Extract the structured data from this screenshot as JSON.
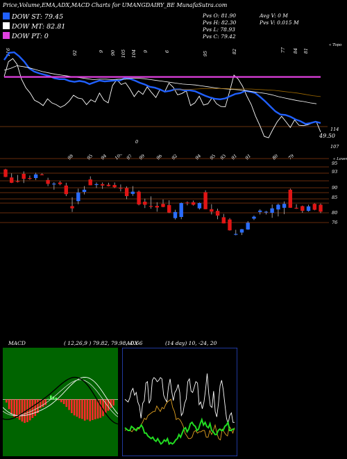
{
  "header": {
    "title": "Price,Volume,EMA,ADX,MACD Charts for UMANGDAIRY_BE MunafaSutra.com"
  },
  "legend": [
    {
      "label": "DOW ST: 79.45",
      "color": "#2060ff"
    },
    {
      "label": "DOW MT: 82.81",
      "color": "#ffffff"
    },
    {
      "label": "DOW PT: 0",
      "color": "#e040e0"
    }
  ],
  "info": {
    "prev_open": "Pvs  O: 81.90",
    "prev_high": "Pvs  H: 82.30",
    "prev_low": "Pvs  L: 78.93",
    "prev_close": "Pvs  C: 79.42",
    "avg_volume": "Avg V: 0  M",
    "prev_volume": "Pvs  V: 0.015 M"
  },
  "chart_data": [
    {
      "type": "line",
      "name": "price-ema-panel",
      "top_labels": [
        "116",
        "92",
        "9",
        "90",
        "105",
        "104",
        "9",
        "6",
        "95",
        "82",
        "77",
        "84",
        "81"
      ],
      "top_marks": [
        "6",
        "6"
      ],
      "corner_label": "« Topo",
      "right_labels": [
        "114",
        "107"
      ],
      "price_value_label": "49.50",
      "zero_mark": "0",
      "series": [
        {
          "color": "#ffffff",
          "values": [
            114.5,
            117.8,
            118.5,
            117.2,
            113.9,
            112.0,
            110.8,
            109.2,
            108.7,
            108.0,
            109.5,
            108.6,
            108.2,
            107.6,
            108.1,
            109.0,
            110.3,
            109.7,
            109.5,
            108.2,
            109.3,
            108.8,
            110.8,
            109.2,
            108.6,
            112.5,
            113.8,
            112.7,
            113.1,
            111.7,
            110.0,
            111.3,
            110.5,
            112.2,
            110.9,
            109.8,
            111.7,
            111.0,
            113.0,
            112.1,
            110.4,
            110.7,
            111.3,
            108.0,
            108.6,
            110.1,
            108.1,
            108.4,
            109.8,
            108.4,
            107.8,
            107.7,
            111.1,
            114.8,
            113.9,
            112.3,
            110.1,
            108.2,
            105.6,
            103.5,
            101.1,
            100.8,
            102.7,
            104.4,
            105.6,
            104.4,
            103.1,
            104.8,
            103.6,
            103.5,
            103.7,
            104.1,
            104.4,
            102.1
          ]
        },
        {
          "color": "#2060ff",
          "values": [
            118.2,
            119.8,
            119.9,
            119.0,
            117.8,
            116.3,
            115.6,
            115.2,
            114.9,
            114.6,
            114.1,
            113.9,
            113.9,
            113.5,
            113.3,
            113.5,
            113.3,
            112.8,
            113.2,
            113.6,
            113.4,
            113.5,
            113.6,
            113.6,
            114.1,
            114.0,
            113.6,
            113.1,
            112.7,
            112.2,
            112.0,
            111.6,
            111.1,
            111.3,
            111.6,
            111.6,
            111.4,
            111.4,
            111.2,
            110.7,
            110.2,
            109.8,
            109.5,
            109.4,
            109.6,
            110.1,
            110.6,
            110.8,
            111.3,
            111.1,
            110.8,
            109.9,
            108.9,
            107.8,
            106.7,
            106.0,
            105.9,
            105.5,
            104.9,
            104.5,
            103.9,
            104.1,
            104.4,
            104.1
          ]
        },
        {
          "color": "#ffffff",
          "values": [
            115.9,
            116.3,
            116.9,
            116.7,
            116.4,
            116.0,
            115.6,
            115.3,
            115.0,
            114.8,
            114.6,
            114.4,
            114.2,
            114.0,
            113.8,
            113.9,
            113.9,
            113.8,
            113.9,
            113.9,
            114.1,
            114.1,
            114.0,
            113.8,
            113.6,
            113.4,
            113.2,
            113.0,
            112.8,
            112.7,
            112.6,
            112.4,
            112.2,
            112.0,
            111.8,
            111.7,
            111.6,
            111.5,
            111.3,
            111.1,
            110.9,
            110.7,
            110.4,
            110.0,
            109.7,
            109.4,
            109.1,
            108.9,
            108.6,
            108.4
          ]
        },
        {
          "color": "#a06a00",
          "values": [
            111.5,
            111.6,
            111.6,
            111.7,
            111.8,
            111.8,
            111.8,
            111.8,
            111.7,
            111.7,
            111.7,
            111.6,
            111.5,
            111.4,
            111.2,
            111.0,
            110.8,
            110.5,
            110.2,
            110.0
          ]
        },
        {
          "color": "#e040e0",
          "values": [
            114.4,
            114.4
          ]
        }
      ],
      "xlim": [
        0,
        63
      ],
      "ylim": [
        97.4,
        120.4
      ]
    },
    {
      "type": "candlestick",
      "name": "candle-panel",
      "top_labels": [
        "98",
        "95",
        "94",
        "104",
        "97",
        "99",
        "96",
        "92",
        "94",
        "95",
        "93",
        "91",
        "91",
        "80",
        "79"
      ],
      "corner_label": "« Lovern",
      "right_labels": [
        "95",
        "93",
        "90",
        "85",
        "80",
        "76"
      ],
      "candles": [
        {
          "o": 94.6,
          "h": 94.8,
          "l": 91.8,
          "c": 91.9
        },
        {
          "o": 91.7,
          "h": 93.2,
          "l": 89.7,
          "c": 89.8
        },
        {
          "o": 90.4,
          "h": 92.6,
          "l": 89.9,
          "c": 90.1
        },
        {
          "o": 93.0,
          "h": 93.9,
          "l": 89.7,
          "c": 91.2
        },
        {
          "o": 91.5,
          "h": 92.4,
          "l": 90.9,
          "c": 91.2
        },
        {
          "o": 91.5,
          "h": 93.4,
          "l": 90.8,
          "c": 92.8
        },
        {
          "o": 92.8,
          "h": 93.2,
          "l": 92.6,
          "c": 92.6
        },
        {
          "o": 90.8,
          "h": 91.6,
          "l": 88.6,
          "c": 89.4
        },
        {
          "o": 89.4,
          "h": 90.0,
          "l": 87.3,
          "c": 89.5
        },
        {
          "o": 89.9,
          "h": 90.4,
          "l": 88.9,
          "c": 89.3
        },
        {
          "o": 88.8,
          "h": 89.8,
          "l": 85.0,
          "c": 85.7
        },
        {
          "o": 81.4,
          "h": 84.6,
          "l": 79.3,
          "c": 80.6
        },
        {
          "o": 83.2,
          "h": 87.7,
          "l": 82.1,
          "c": 86.3
        },
        {
          "o": 86.5,
          "h": 88.6,
          "l": 85.6,
          "c": 87.3
        },
        {
          "o": 91.0,
          "h": 92.1,
          "l": 88.9,
          "c": 88.9
        },
        {
          "o": 89.0,
          "h": 89.9,
          "l": 87.9,
          "c": 89.3
        },
        {
          "o": 89.3,
          "h": 89.9,
          "l": 87.6,
          "c": 88.8
        },
        {
          "o": 89.1,
          "h": 89.8,
          "l": 88.5,
          "c": 88.6
        },
        {
          "o": 89.0,
          "h": 89.9,
          "l": 87.9,
          "c": 88.2
        },
        {
          "o": 88.0,
          "h": 89.2,
          "l": 86.7,
          "c": 87.9
        },
        {
          "o": 87.9,
          "h": 88.5,
          "l": 83.9,
          "c": 85.0
        },
        {
          "o": 85.8,
          "h": 88.6,
          "l": 85.1,
          "c": 86.6
        },
        {
          "o": 86.6,
          "h": 87.0,
          "l": 81.7,
          "c": 82.0
        },
        {
          "o": 83.0,
          "h": 84.1,
          "l": 80.7,
          "c": 81.9
        },
        {
          "o": 81.5,
          "h": 84.9,
          "l": 80.5,
          "c": 81.3
        },
        {
          "o": 81.5,
          "h": 82.8,
          "l": 79.4,
          "c": 80.9
        },
        {
          "o": 82.2,
          "h": 83.8,
          "l": 81.0,
          "c": 81.1
        },
        {
          "o": 81.8,
          "h": 83.5,
          "l": 78.9,
          "c": 79.1
        },
        {
          "o": 77.1,
          "h": 80.1,
          "l": 76.6,
          "c": 79.3
        },
        {
          "o": 77.5,
          "h": 82.7,
          "l": 76.7,
          "c": 82.5
        },
        {
          "o": 82.7,
          "h": 83.1,
          "l": 81.7,
          "c": 82.6
        },
        {
          "o": 82.8,
          "h": 83.4,
          "l": 81.6,
          "c": 81.9
        },
        {
          "o": 80.6,
          "h": 82.7,
          "l": 80.2,
          "c": 82.5
        },
        {
          "o": 86.4,
          "h": 87.1,
          "l": 80.3,
          "c": 80.3
        },
        {
          "o": 80.3,
          "h": 82.1,
          "l": 78.4,
          "c": 79.4
        },
        {
          "o": 79.7,
          "h": 80.5,
          "l": 76.7,
          "c": 78.0
        },
        {
          "o": 77.4,
          "h": 78.6,
          "l": 75.2,
          "c": 75.2
        },
        {
          "o": 76.6,
          "h": 77.1,
          "l": 72.6,
          "c": 72.7
        },
        {
          "o": 71.1,
          "h": 72.9,
          "l": 70.9,
          "c": 71.4
        },
        {
          "o": 71.9,
          "h": 73.2,
          "l": 71.0,
          "c": 73.1
        },
        {
          "o": 73.0,
          "h": 76.0,
          "l": 72.9,
          "c": 75.4
        },
        {
          "o": 76.9,
          "h": 78.0,
          "l": 76.4,
          "c": 77.6
        },
        {
          "o": 79.3,
          "h": 80.3,
          "l": 78.4,
          "c": 79.8
        },
        {
          "o": 79.1,
          "h": 79.7,
          "l": 78.4,
          "c": 79.4
        },
        {
          "o": 79.0,
          "h": 82.0,
          "l": 77.2,
          "c": 80.6
        },
        {
          "o": 80.2,
          "h": 82.3,
          "l": 77.7,
          "c": 81.9
        },
        {
          "o": 80.8,
          "h": 83.1,
          "l": 78.5,
          "c": 82.2
        },
        {
          "o": 87.3,
          "h": 87.7,
          "l": 80.8,
          "c": 80.8
        },
        {
          "o": 80.8,
          "h": 82.1,
          "l": 80.4,
          "c": 80.6
        },
        {
          "o": 81.4,
          "h": 81.6,
          "l": 79.0,
          "c": 79.7
        },
        {
          "o": 79.7,
          "h": 81.9,
          "l": 79.4,
          "c": 81.3
        },
        {
          "o": 82.2,
          "h": 82.4,
          "l": 79.9,
          "c": 80.1
        },
        {
          "o": 81.9,
          "h": 82.3,
          "l": 78.9,
          "c": 79.4
        }
      ],
      "ylim": [
        68,
        98
      ]
    },
    {
      "type": "bar",
      "name": "macd-panel",
      "title": "MACD",
      "params": "( 12,26,9 ) 79.82,  79.98,  -0.66",
      "values": [
        -1.2,
        -3.8,
        -5.5,
        -6.8,
        -7.2,
        -7.9,
        -8.6,
        -9.1,
        -8.8,
        -8.1,
        -7.2,
        -6.4,
        -5.3,
        -3.4,
        -2.9,
        -2.2,
        0.2,
        1.5,
        1.1,
        0.7,
        -0.3,
        -1.1,
        -1.8,
        -2.9,
        -4.1,
        -5.3,
        -6.2,
        -6.7,
        -7.3,
        -7.6,
        -8.2,
        -7.8,
        -8.4,
        -8.0,
        -7.7,
        -7.4,
        -7.1,
        -6.5,
        -5.2,
        -4.4,
        -3.3,
        -2.4
      ],
      "ylim": [
        -22,
        20
      ]
    },
    {
      "type": "line",
      "name": "adx-panel",
      "title": "ADX",
      "params": "(14  day) 10,  -24,  20",
      "series": [
        {
          "color": "#ffffff",
          "values": [
            42,
            41,
            40,
            43,
            48,
            50,
            45,
            47,
            40,
            37,
            28,
            39,
            41,
            54,
            55,
            39,
            42,
            56,
            58,
            57,
            55,
            56,
            58,
            57,
            45,
            42,
            40,
            51,
            57,
            48,
            41,
            47,
            49,
            53,
            47,
            30,
            32,
            39,
            42,
            55,
            57,
            48,
            47,
            51,
            55,
            54,
            38,
            40,
            35,
            40,
            49,
            61,
            46,
            37,
            36,
            48,
            33,
            29,
            39,
            52,
            56,
            49,
            38,
            28,
            24,
            30,
            32,
            25,
            25
          ]
        },
        {
          "color": "#e0a020",
          "values": [
            19,
            20,
            19,
            19,
            18,
            20,
            19,
            21,
            20,
            23,
            25,
            28,
            27,
            30,
            31,
            32,
            33,
            33,
            37,
            35,
            33,
            36,
            35,
            38,
            40,
            41,
            42,
            36,
            33,
            27,
            28,
            27,
            25,
            22,
            17,
            15,
            13,
            13,
            14,
            18,
            19,
            17,
            18,
            18,
            19,
            19,
            14,
            14,
            19,
            16,
            19,
            23,
            17,
            13,
            12,
            20,
            18,
            16,
            15,
            22,
            20,
            17,
            21
          ]
        },
        {
          "color": "#22dd22",
          "values": [
            21,
            20,
            19,
            19,
            22,
            21,
            20,
            19,
            21,
            21,
            23,
            21,
            17,
            17,
            15,
            14,
            13,
            14,
            12,
            11,
            13,
            11,
            9,
            10,
            12,
            11,
            13,
            9,
            10,
            9,
            10,
            12,
            13,
            16,
            14,
            17,
            20,
            21,
            18,
            20,
            24,
            25,
            23,
            22,
            19,
            20,
            24,
            27,
            23,
            25,
            22,
            21,
            24,
            19,
            18,
            16,
            16,
            19,
            20,
            19,
            19,
            22,
            23,
            25,
            19,
            19,
            20,
            20
          ]
        }
      ],
      "ylim": [
        0,
        80
      ]
    }
  ]
}
